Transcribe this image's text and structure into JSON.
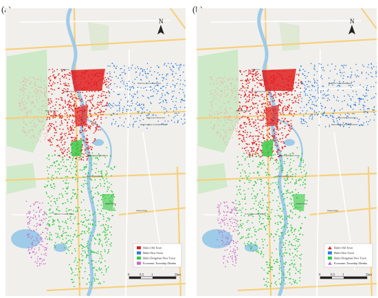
{
  "panels": [
    {
      "label": "(a)"
    },
    {
      "label": "(b)"
    }
  ],
  "north_label": "N",
  "scale": {
    "ticks": [
      "0",
      "0.5",
      "1",
      "2km"
    ]
  },
  "legend": {
    "items": [
      {
        "label": "Hulin Old Town",
        "color": "#e02020",
        "shape": "square"
      },
      {
        "label": "Hulin New Town",
        "color": "#2a7de1",
        "shape": "square"
      },
      {
        "label": "Hulin Dongshan New Town",
        "color": "#2ecc40",
        "shape": "square"
      },
      {
        "label": "Economic Township Zhenhu",
        "color": "#cc66cc",
        "shape": "square"
      }
    ]
  },
  "map_labels": [
    "Hulin Town",
    "Hulin Old Town",
    "Hulin New Town Administration",
    "Hulin Airport Expressway",
    "Hulin Dongshan New Town",
    "Hulin Bus Station",
    "Hulin Dongshan Park",
    "Zhenhu Village",
    "Taizhen Village",
    "Economic Township Zhenhu",
    "Hulin Dongshan Government District"
  ],
  "colors": {
    "old_town": "#e02020",
    "new_town": "#2a7de1",
    "dongshan": "#2ecc40",
    "economic": "#cc66cc",
    "water": "#9ecbe8",
    "park": "#c9e8c3",
    "road": "#f6d07a"
  }
}
